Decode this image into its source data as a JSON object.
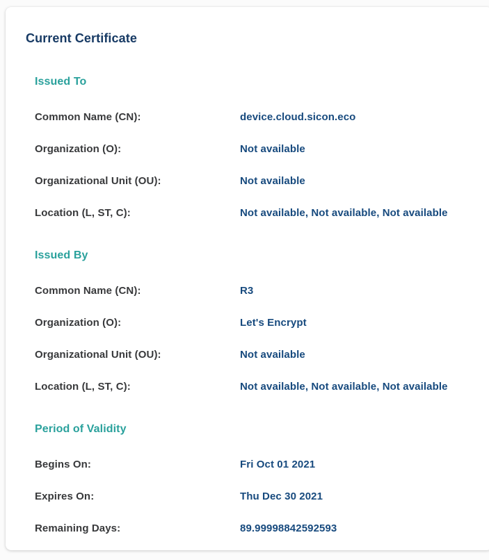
{
  "card": {
    "title": "Current Certificate",
    "sections": [
      {
        "heading": "Issued To",
        "rows": [
          {
            "label": "Common Name (CN):",
            "value": "device.cloud.sicon.eco"
          },
          {
            "label": "Organization (O):",
            "value": "Not available"
          },
          {
            "label": "Organizational Unit (OU):",
            "value": "Not available"
          },
          {
            "label": "Location (L, ST, C):",
            "value": "Not available, Not available, Not available"
          }
        ]
      },
      {
        "heading": "Issued By",
        "rows": [
          {
            "label": "Common Name (CN):",
            "value": "R3"
          },
          {
            "label": "Organization (O):",
            "value": "Let's Encrypt"
          },
          {
            "label": "Organizational Unit (OU):",
            "value": "Not available"
          },
          {
            "label": "Location (L, ST, C):",
            "value": "Not available, Not available, Not available"
          }
        ]
      },
      {
        "heading": "Period of Validity",
        "rows": [
          {
            "label": "Begins On:",
            "value": "Fri Oct 01 2021"
          },
          {
            "label": "Expires On:",
            "value": "Thu Dec 30 2021"
          },
          {
            "label": "Remaining Days:",
            "value": "89.99998842592593"
          }
        ]
      }
    ]
  },
  "colors": {
    "title_navy": "#173a64",
    "section_teal": "#2aa19c",
    "label_gray": "#38393b",
    "value_navy": "#174a7e",
    "card_background": "#ffffff",
    "page_background": "#fbfbfb"
  }
}
